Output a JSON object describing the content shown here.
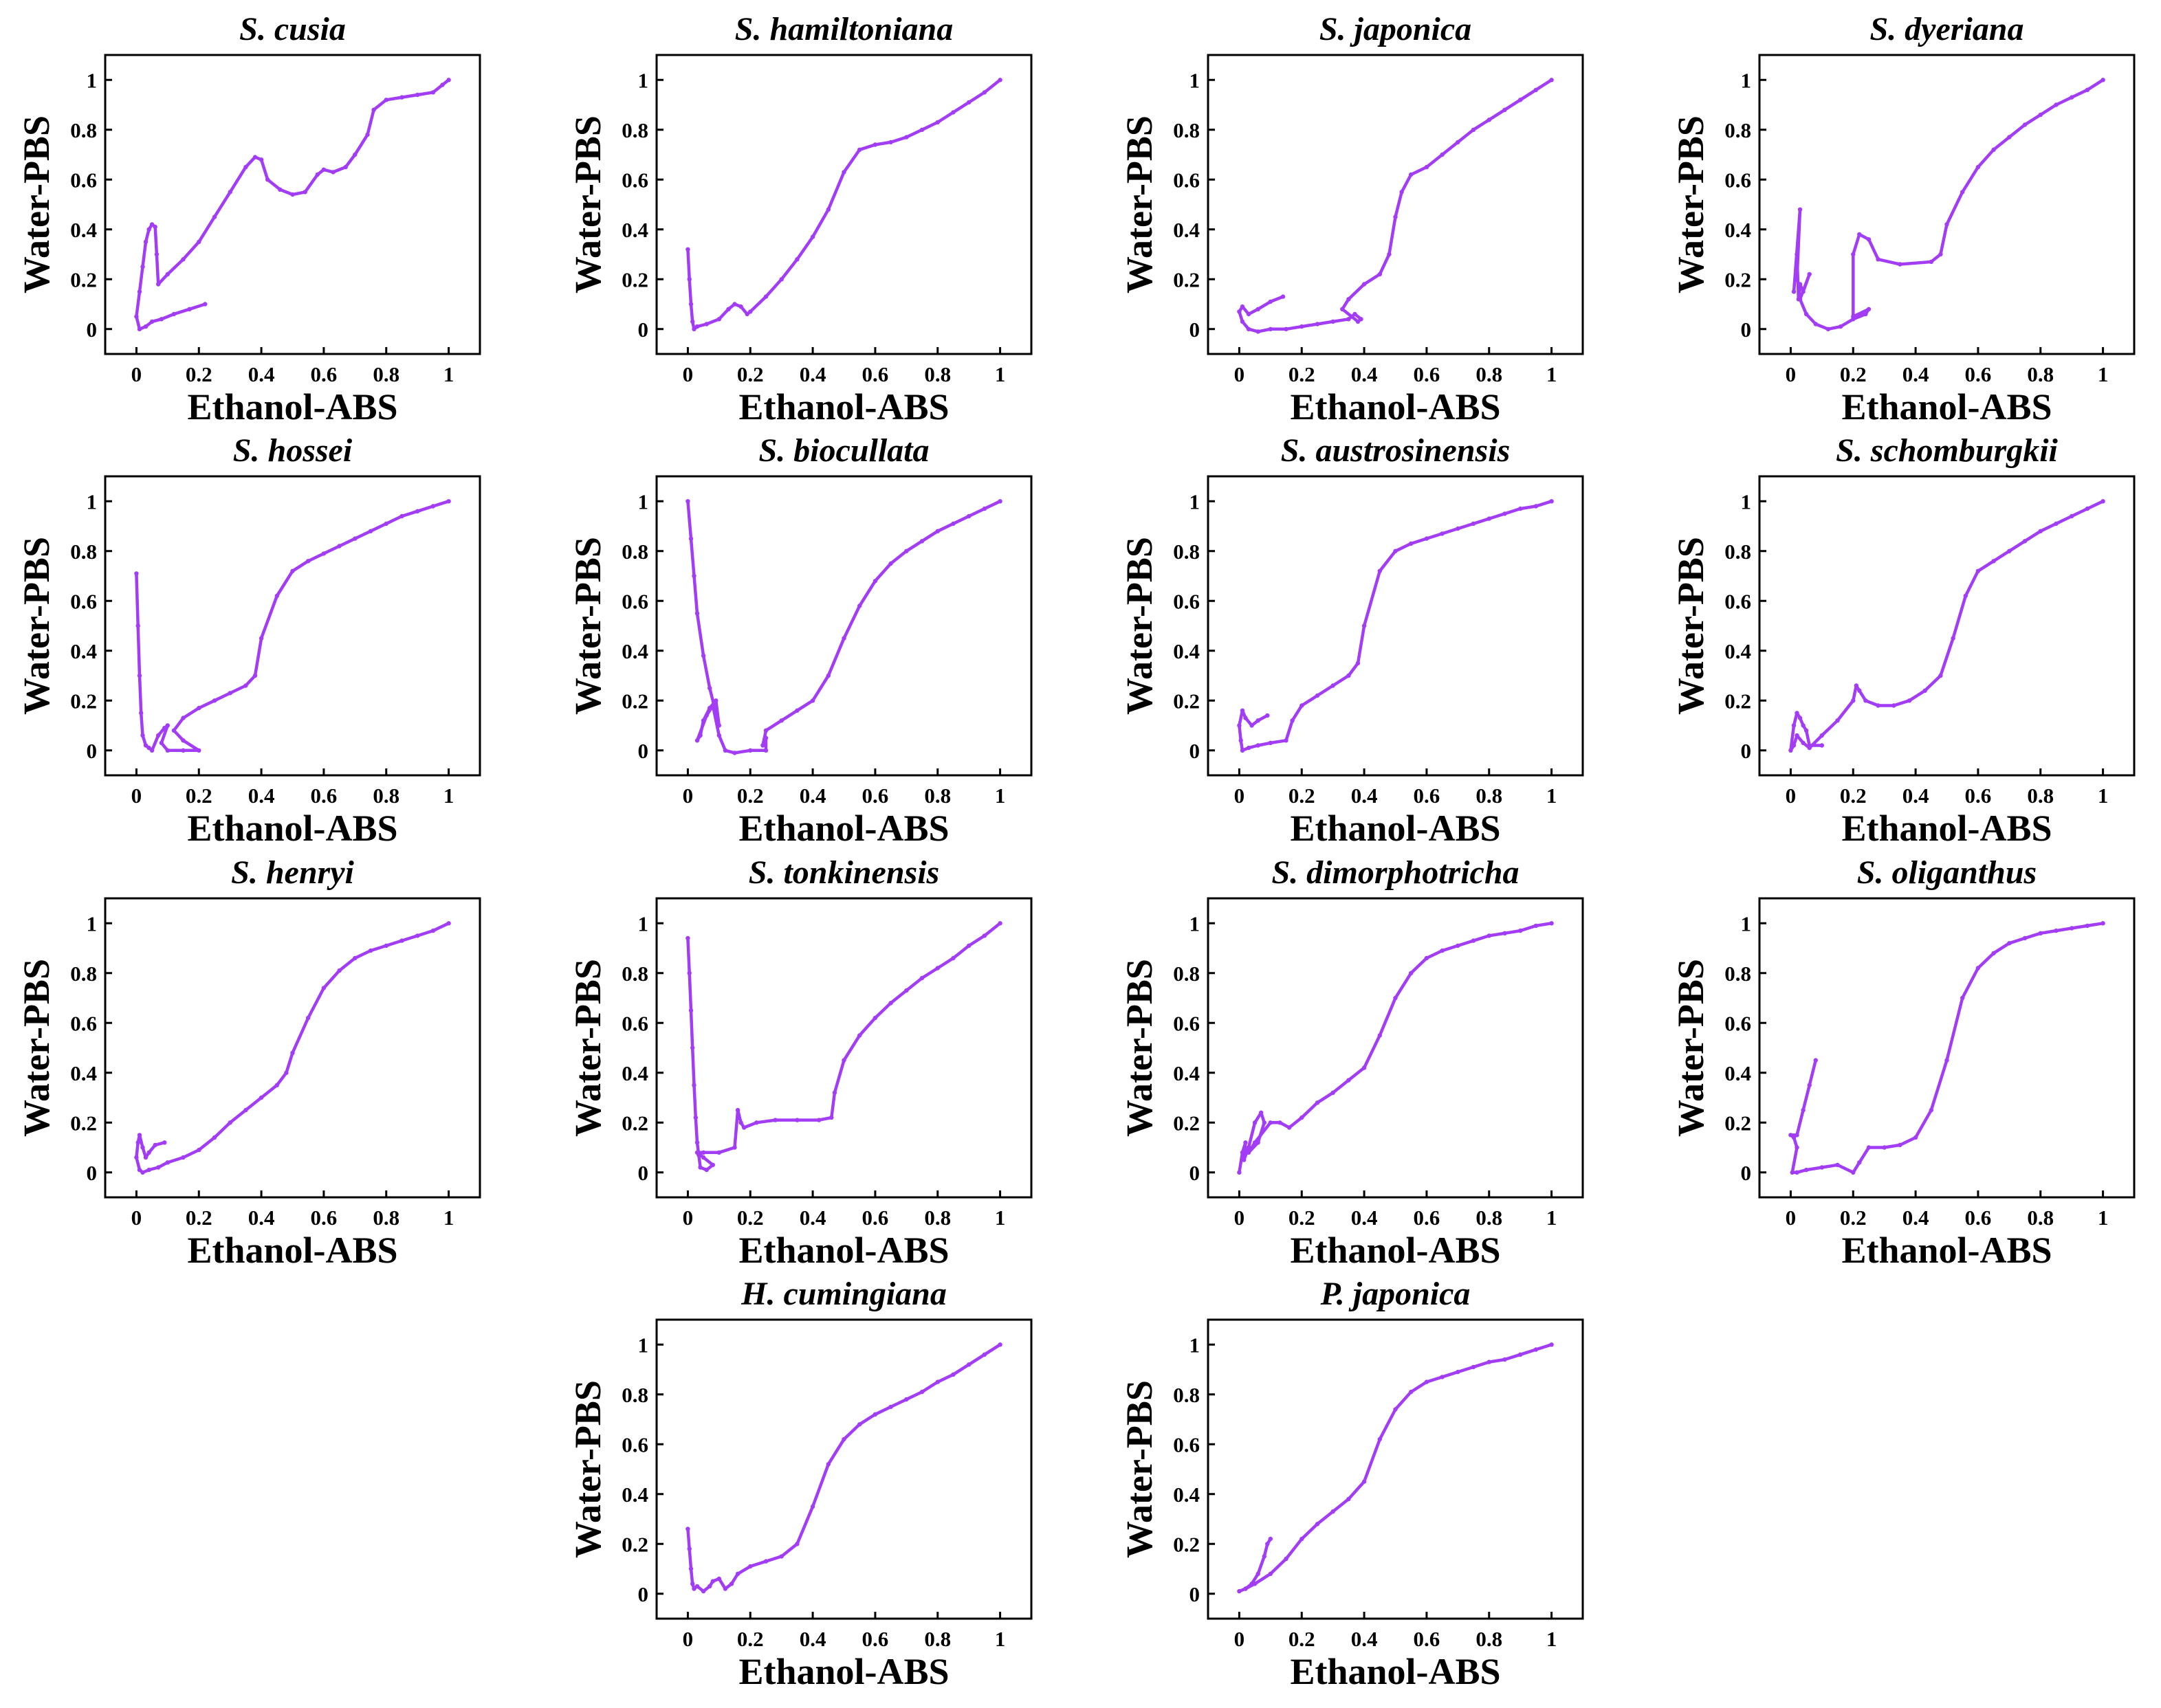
{
  "figure": {
    "x_label": "Ethanol-ABS",
    "y_label": "Water-PBS",
    "series_color": "#a23cf5"
  },
  "chart_data": [
    {
      "type": "line",
      "title": "S. cusia",
      "xlabel": "Ethanol-ABS",
      "ylabel": "Water-PBS",
      "xlim": [
        -0.1,
        1.1
      ],
      "ylim": [
        -0.1,
        1.1
      ],
      "xticks": [
        "0",
        "0.2",
        "0.4",
        "0.6",
        "0.8",
        "1"
      ],
      "yticks": [
        "0",
        "0.2",
        "0.4",
        "0.6",
        "0.8",
        "1"
      ],
      "x": [
        0.22,
        0.17,
        0.12,
        0.08,
        0.05,
        0.03,
        0.01,
        0.0,
        0.01,
        0.02,
        0.03,
        0.04,
        0.05,
        0.06,
        0.065,
        0.07,
        0.1,
        0.15,
        0.2,
        0.25,
        0.3,
        0.35,
        0.38,
        0.4,
        0.42,
        0.46,
        0.5,
        0.54,
        0.58,
        0.6,
        0.63,
        0.67,
        0.7,
        0.74,
        0.76,
        0.8,
        0.85,
        0.9,
        0.95,
        0.98,
        1.0
      ],
      "y": [
        0.1,
        0.08,
        0.06,
        0.04,
        0.03,
        0.01,
        0.0,
        0.05,
        0.15,
        0.25,
        0.35,
        0.4,
        0.42,
        0.41,
        0.3,
        0.18,
        0.22,
        0.28,
        0.35,
        0.45,
        0.55,
        0.65,
        0.69,
        0.68,
        0.6,
        0.56,
        0.54,
        0.55,
        0.62,
        0.64,
        0.63,
        0.65,
        0.7,
        0.78,
        0.88,
        0.92,
        0.93,
        0.94,
        0.95,
        0.98,
        1.0
      ]
    },
    {
      "type": "line",
      "title": "S. hamiltoniana",
      "xlabel": "Ethanol-ABS",
      "ylabel": "Water-PBS",
      "xlim": [
        -0.1,
        1.1
      ],
      "ylim": [
        -0.1,
        1.1
      ],
      "xticks": [
        "0",
        "0.2",
        "0.4",
        "0.6",
        "0.8",
        "1"
      ],
      "yticks": [
        "0",
        "0.2",
        "0.4",
        "0.6",
        "0.8",
        "1"
      ],
      "x": [
        0.0,
        0.005,
        0.01,
        0.015,
        0.02,
        0.03,
        0.06,
        0.1,
        0.13,
        0.15,
        0.17,
        0.19,
        0.2,
        0.25,
        0.3,
        0.35,
        0.4,
        0.45,
        0.5,
        0.55,
        0.6,
        0.65,
        0.7,
        0.75,
        0.8,
        0.85,
        0.9,
        0.95,
        1.0
      ],
      "y": [
        0.32,
        0.2,
        0.1,
        0.03,
        0.0,
        0.01,
        0.02,
        0.04,
        0.08,
        0.1,
        0.09,
        0.06,
        0.07,
        0.13,
        0.2,
        0.28,
        0.37,
        0.48,
        0.63,
        0.72,
        0.74,
        0.75,
        0.77,
        0.8,
        0.83,
        0.87,
        0.91,
        0.95,
        1.0
      ]
    },
    {
      "type": "line",
      "title": "S. japonica",
      "xlabel": "Ethanol-ABS",
      "ylabel": "Water-PBS",
      "xlim": [
        -0.1,
        1.1
      ],
      "ylim": [
        -0.1,
        1.1
      ],
      "xticks": [
        "0",
        "0.2",
        "0.4",
        "0.6",
        "0.8",
        "1"
      ],
      "yticks": [
        "0",
        "0.2",
        "0.4",
        "0.6",
        "0.8",
        "1"
      ],
      "x": [
        0.14,
        0.1,
        0.06,
        0.03,
        0.01,
        0.0,
        0.01,
        0.03,
        0.06,
        0.1,
        0.15,
        0.2,
        0.25,
        0.3,
        0.35,
        0.37,
        0.39,
        0.38,
        0.33,
        0.35,
        0.4,
        0.45,
        0.48,
        0.5,
        0.52,
        0.55,
        0.6,
        0.65,
        0.7,
        0.75,
        0.8,
        0.85,
        0.9,
        0.95,
        1.0
      ],
      "y": [
        0.13,
        0.11,
        0.08,
        0.06,
        0.09,
        0.07,
        0.03,
        0.0,
        -0.01,
        0.0,
        0.0,
        0.01,
        0.02,
        0.03,
        0.04,
        0.06,
        0.04,
        0.03,
        0.08,
        0.12,
        0.18,
        0.22,
        0.3,
        0.45,
        0.55,
        0.62,
        0.65,
        0.7,
        0.75,
        0.8,
        0.84,
        0.88,
        0.92,
        0.96,
        1.0
      ]
    },
    {
      "type": "line",
      "title": "S. dyeriana",
      "xlabel": "Ethanol-ABS",
      "ylabel": "Water-PBS",
      "xlim": [
        -0.1,
        1.1
      ],
      "ylim": [
        -0.1,
        1.1
      ],
      "xticks": [
        "0",
        "0.2",
        "0.4",
        "0.6",
        "0.8",
        "1"
      ],
      "yticks": [
        "0",
        "0.2",
        "0.4",
        "0.6",
        "0.8",
        "1"
      ],
      "x": [
        0.02,
        0.03,
        0.01,
        0.02,
        0.025,
        0.03,
        0.04,
        0.06,
        0.03,
        0.05,
        0.08,
        0.12,
        0.16,
        0.2,
        0.24,
        0.25,
        0.2,
        0.2,
        0.22,
        0.25,
        0.28,
        0.35,
        0.45,
        0.48,
        0.5,
        0.55,
        0.6,
        0.65,
        0.7,
        0.75,
        0.8,
        0.85,
        0.9,
        0.95,
        1.0
      ],
      "y": [
        0.2,
        0.48,
        0.15,
        0.3,
        0.12,
        0.18,
        0.15,
        0.22,
        0.12,
        0.06,
        0.02,
        0.0,
        0.01,
        0.04,
        0.06,
        0.08,
        0.05,
        0.3,
        0.38,
        0.36,
        0.28,
        0.26,
        0.27,
        0.3,
        0.42,
        0.55,
        0.65,
        0.72,
        0.77,
        0.82,
        0.86,
        0.9,
        0.93,
        0.96,
        1.0
      ]
    },
    {
      "type": "line",
      "title": "S. hossei",
      "xlabel": "Ethanol-ABS",
      "ylabel": "Water-PBS",
      "xlim": [
        -0.1,
        1.1
      ],
      "ylim": [
        -0.1,
        1.1
      ],
      "xticks": [
        "0",
        "0.2",
        "0.4",
        "0.6",
        "0.8",
        "1"
      ],
      "yticks": [
        "0",
        "0.2",
        "0.4",
        "0.6",
        "0.8",
        "1"
      ],
      "x": [
        0.0,
        0.005,
        0.01,
        0.015,
        0.02,
        0.03,
        0.04,
        0.05,
        0.07,
        0.09,
        0.1,
        0.08,
        0.1,
        0.15,
        0.2,
        0.15,
        0.12,
        0.15,
        0.2,
        0.25,
        0.3,
        0.35,
        0.38,
        0.4,
        0.45,
        0.5,
        0.55,
        0.6,
        0.65,
        0.7,
        0.75,
        0.8,
        0.85,
        0.9,
        0.95,
        1.0
      ],
      "y": [
        0.71,
        0.5,
        0.3,
        0.15,
        0.06,
        0.02,
        0.01,
        0.0,
        0.06,
        0.09,
        0.1,
        0.03,
        0.0,
        0.0,
        0.0,
        0.04,
        0.08,
        0.13,
        0.17,
        0.2,
        0.23,
        0.26,
        0.3,
        0.45,
        0.62,
        0.72,
        0.76,
        0.79,
        0.82,
        0.85,
        0.88,
        0.91,
        0.94,
        0.96,
        0.98,
        1.0
      ]
    },
    {
      "type": "line",
      "title": "S. biocullata",
      "xlabel": "Ethanol-ABS",
      "ylabel": "Water-PBS",
      "xlim": [
        -0.1,
        1.1
      ],
      "ylim": [
        -0.1,
        1.1
      ],
      "xticks": [
        "0",
        "0.2",
        "0.4",
        "0.6",
        "0.8",
        "1"
      ],
      "yticks": [
        "0",
        "0.2",
        "0.4",
        "0.6",
        "0.8",
        "1"
      ],
      "x": [
        0.0,
        0.01,
        0.02,
        0.03,
        0.05,
        0.07,
        0.09,
        0.1,
        0.09,
        0.07,
        0.05,
        0.04,
        0.03,
        0.06,
        0.08,
        0.1,
        0.12,
        0.15,
        0.2,
        0.25,
        0.25,
        0.24,
        0.25,
        0.3,
        0.35,
        0.4,
        0.45,
        0.5,
        0.55,
        0.6,
        0.65,
        0.7,
        0.75,
        0.8,
        0.85,
        0.9,
        0.95,
        1.0
      ],
      "y": [
        1.0,
        0.85,
        0.7,
        0.55,
        0.38,
        0.25,
        0.15,
        0.1,
        0.2,
        0.17,
        0.12,
        0.06,
        0.04,
        0.14,
        0.18,
        0.06,
        0.0,
        -0.01,
        0.0,
        0.0,
        0.05,
        0.02,
        0.08,
        0.12,
        0.16,
        0.2,
        0.3,
        0.45,
        0.58,
        0.68,
        0.75,
        0.8,
        0.84,
        0.88,
        0.91,
        0.94,
        0.97,
        1.0
      ]
    },
    {
      "type": "line",
      "title": "S. austrosinensis",
      "xlabel": "Ethanol-ABS",
      "ylabel": "Water-PBS",
      "xlim": [
        -0.1,
        1.1
      ],
      "ylim": [
        -0.1,
        1.1
      ],
      "xticks": [
        "0",
        "0.2",
        "0.4",
        "0.6",
        "0.8",
        "1"
      ],
      "yticks": [
        "0",
        "0.2",
        "0.4",
        "0.6",
        "0.8",
        "1"
      ],
      "x": [
        0.09,
        0.06,
        0.04,
        0.02,
        0.01,
        0.0,
        0.005,
        0.01,
        0.03,
        0.06,
        0.1,
        0.15,
        0.17,
        0.2,
        0.25,
        0.3,
        0.35,
        0.38,
        0.4,
        0.45,
        0.5,
        0.55,
        0.6,
        0.65,
        0.7,
        0.75,
        0.8,
        0.85,
        0.9,
        0.95,
        1.0
      ],
      "y": [
        0.14,
        0.12,
        0.1,
        0.13,
        0.16,
        0.1,
        0.04,
        0.0,
        0.01,
        0.02,
        0.03,
        0.04,
        0.12,
        0.18,
        0.22,
        0.26,
        0.3,
        0.35,
        0.5,
        0.72,
        0.8,
        0.83,
        0.85,
        0.87,
        0.89,
        0.91,
        0.93,
        0.95,
        0.97,
        0.98,
        1.0
      ]
    },
    {
      "type": "line",
      "title": "S. schomburgkii",
      "xlabel": "Ethanol-ABS",
      "ylabel": "Water-PBS",
      "xlim": [
        -0.1,
        1.1
      ],
      "ylim": [
        -0.1,
        1.1
      ],
      "xticks": [
        "0",
        "0.2",
        "0.4",
        "0.6",
        "0.8",
        "1"
      ],
      "yticks": [
        "0",
        "0.2",
        "0.4",
        "0.6",
        "0.8",
        "1"
      ],
      "x": [
        0.1,
        0.06,
        0.05,
        0.04,
        0.03,
        0.02,
        0.01,
        0.0,
        0.01,
        0.02,
        0.04,
        0.06,
        0.1,
        0.15,
        0.2,
        0.21,
        0.22,
        0.24,
        0.28,
        0.33,
        0.38,
        0.43,
        0.48,
        0.52,
        0.56,
        0.6,
        0.65,
        0.7,
        0.75,
        0.8,
        0.85,
        0.9,
        0.95,
        1.0
      ],
      "y": [
        0.02,
        0.02,
        0.08,
        0.1,
        0.13,
        0.15,
        0.1,
        0.0,
        0.02,
        0.06,
        0.03,
        0.01,
        0.06,
        0.12,
        0.2,
        0.26,
        0.24,
        0.2,
        0.18,
        0.18,
        0.2,
        0.24,
        0.3,
        0.45,
        0.62,
        0.72,
        0.76,
        0.8,
        0.84,
        0.88,
        0.91,
        0.94,
        0.97,
        1.0
      ]
    },
    {
      "type": "line",
      "title": "S. henryi",
      "xlabel": "Ethanol-ABS",
      "ylabel": "Water-PBS",
      "xlim": [
        -0.1,
        1.1
      ],
      "ylim": [
        -0.1,
        1.1
      ],
      "xticks": [
        "0",
        "0.2",
        "0.4",
        "0.6",
        "0.8",
        "1"
      ],
      "yticks": [
        "0",
        "0.2",
        "0.4",
        "0.6",
        "0.8",
        "1"
      ],
      "x": [
        0.09,
        0.06,
        0.04,
        0.03,
        0.02,
        0.01,
        0.005,
        0.0,
        0.01,
        0.02,
        0.04,
        0.07,
        0.1,
        0.15,
        0.2,
        0.25,
        0.3,
        0.35,
        0.4,
        0.45,
        0.48,
        0.5,
        0.55,
        0.6,
        0.65,
        0.7,
        0.75,
        0.8,
        0.85,
        0.9,
        0.95,
        1.0
      ],
      "y": [
        0.12,
        0.11,
        0.08,
        0.06,
        0.1,
        0.15,
        0.12,
        0.06,
        0.01,
        0.0,
        0.01,
        0.02,
        0.04,
        0.06,
        0.09,
        0.14,
        0.2,
        0.25,
        0.3,
        0.35,
        0.4,
        0.48,
        0.62,
        0.74,
        0.81,
        0.86,
        0.89,
        0.91,
        0.93,
        0.95,
        0.97,
        1.0
      ]
    },
    {
      "type": "line",
      "title": "S. tonkinensis",
      "xlabel": "Ethanol-ABS",
      "ylabel": "Water-PBS",
      "xlim": [
        -0.1,
        1.1
      ],
      "ylim": [
        -0.1,
        1.1
      ],
      "xticks": [
        "0",
        "0.2",
        "0.4",
        "0.6",
        "0.8",
        "1"
      ],
      "yticks": [
        "0",
        "0.2",
        "0.4",
        "0.6",
        "0.8",
        "1"
      ],
      "x": [
        0.0,
        0.005,
        0.01,
        0.015,
        0.02,
        0.025,
        0.03,
        0.035,
        0.04,
        0.06,
        0.08,
        0.05,
        0.03,
        0.05,
        0.1,
        0.15,
        0.16,
        0.17,
        0.18,
        0.22,
        0.28,
        0.35,
        0.42,
        0.46,
        0.47,
        0.5,
        0.55,
        0.6,
        0.65,
        0.7,
        0.75,
        0.8,
        0.85,
        0.9,
        0.95,
        1.0
      ],
      "y": [
        0.94,
        0.8,
        0.65,
        0.5,
        0.35,
        0.22,
        0.12,
        0.07,
        0.02,
        0.01,
        0.03,
        0.06,
        0.08,
        0.08,
        0.08,
        0.1,
        0.25,
        0.2,
        0.18,
        0.2,
        0.21,
        0.21,
        0.21,
        0.22,
        0.32,
        0.45,
        0.55,
        0.62,
        0.68,
        0.73,
        0.78,
        0.82,
        0.86,
        0.91,
        0.95,
        1.0
      ]
    },
    {
      "type": "line",
      "title": "S. dimorphotricha",
      "xlabel": "Ethanol-ABS",
      "ylabel": "Water-PBS",
      "xlim": [
        -0.1,
        1.1
      ],
      "ylim": [
        -0.1,
        1.1
      ],
      "xticks": [
        "0",
        "0.2",
        "0.4",
        "0.6",
        "0.8",
        "1"
      ],
      "yticks": [
        "0",
        "0.2",
        "0.4",
        "0.6",
        "0.8",
        "1"
      ],
      "x": [
        0.0,
        0.01,
        0.02,
        0.015,
        0.03,
        0.05,
        0.07,
        0.08,
        0.06,
        0.03,
        0.05,
        0.1,
        0.13,
        0.16,
        0.2,
        0.25,
        0.3,
        0.35,
        0.4,
        0.45,
        0.5,
        0.55,
        0.6,
        0.65,
        0.7,
        0.75,
        0.8,
        0.85,
        0.9,
        0.95,
        1.0
      ],
      "y": [
        0.0,
        0.08,
        0.12,
        0.05,
        0.1,
        0.2,
        0.24,
        0.2,
        0.12,
        0.08,
        0.12,
        0.2,
        0.2,
        0.18,
        0.22,
        0.28,
        0.32,
        0.37,
        0.42,
        0.55,
        0.7,
        0.8,
        0.86,
        0.89,
        0.91,
        0.93,
        0.95,
        0.96,
        0.97,
        0.99,
        1.0
      ]
    },
    {
      "type": "line",
      "title": "S. oliganthus",
      "xlabel": "Ethanol-ABS",
      "ylabel": "Water-PBS",
      "xlim": [
        -0.1,
        1.1
      ],
      "ylim": [
        -0.1,
        1.1
      ],
      "xticks": [
        "0",
        "0.2",
        "0.4",
        "0.6",
        "0.8",
        "1"
      ],
      "yticks": [
        "0",
        "0.2",
        "0.4",
        "0.6",
        "0.8",
        "1"
      ],
      "x": [
        0.08,
        0.06,
        0.04,
        0.02,
        0.0,
        0.01,
        0.02,
        0.005,
        0.02,
        0.05,
        0.1,
        0.15,
        0.2,
        0.22,
        0.25,
        0.3,
        0.35,
        0.4,
        0.45,
        0.5,
        0.55,
        0.6,
        0.65,
        0.7,
        0.75,
        0.8,
        0.85,
        0.9,
        0.95,
        1.0
      ],
      "y": [
        0.45,
        0.35,
        0.25,
        0.15,
        0.15,
        0.14,
        0.1,
        0.0,
        0.0,
        0.01,
        0.02,
        0.03,
        0.0,
        0.04,
        0.1,
        0.1,
        0.11,
        0.14,
        0.25,
        0.45,
        0.7,
        0.82,
        0.88,
        0.92,
        0.94,
        0.96,
        0.97,
        0.98,
        0.99,
        1.0
      ]
    },
    {
      "type": "line",
      "title": "H. cumingiana",
      "xlabel": "Ethanol-ABS",
      "ylabel": "Water-PBS",
      "xlim": [
        -0.1,
        1.1
      ],
      "ylim": [
        -0.1,
        1.1
      ],
      "xticks": [
        "0",
        "0.2",
        "0.4",
        "0.6",
        "0.8",
        "1"
      ],
      "yticks": [
        "0",
        "0.2",
        "0.4",
        "0.6",
        "0.8",
        "1"
      ],
      "x": [
        0.0,
        0.005,
        0.01,
        0.015,
        0.02,
        0.03,
        0.05,
        0.07,
        0.08,
        0.1,
        0.12,
        0.14,
        0.16,
        0.2,
        0.25,
        0.3,
        0.35,
        0.4,
        0.45,
        0.5,
        0.55,
        0.6,
        0.65,
        0.7,
        0.75,
        0.8,
        0.85,
        0.9,
        0.95,
        1.0
      ],
      "y": [
        0.26,
        0.18,
        0.1,
        0.04,
        0.02,
        0.03,
        0.01,
        0.03,
        0.05,
        0.06,
        0.02,
        0.04,
        0.08,
        0.11,
        0.13,
        0.15,
        0.2,
        0.35,
        0.52,
        0.62,
        0.68,
        0.72,
        0.75,
        0.78,
        0.81,
        0.85,
        0.88,
        0.92,
        0.96,
        1.0
      ]
    },
    {
      "type": "line",
      "title": "P. japonica",
      "xlabel": "Ethanol-ABS",
      "ylabel": "Water-PBS",
      "xlim": [
        -0.1,
        1.1
      ],
      "ylim": [
        -0.1,
        1.1
      ],
      "xticks": [
        "0",
        "0.2",
        "0.4",
        "0.6",
        "0.8",
        "1"
      ],
      "yticks": [
        "0",
        "0.2",
        "0.4",
        "0.6",
        "0.8",
        "1"
      ],
      "x": [
        0.1,
        0.09,
        0.08,
        0.06,
        0.04,
        0.02,
        0.0,
        0.02,
        0.05,
        0.1,
        0.15,
        0.2,
        0.25,
        0.3,
        0.35,
        0.4,
        0.45,
        0.5,
        0.55,
        0.6,
        0.65,
        0.7,
        0.75,
        0.8,
        0.85,
        0.9,
        0.95,
        1.0
      ],
      "y": [
        0.22,
        0.2,
        0.15,
        0.08,
        0.04,
        0.02,
        0.01,
        0.02,
        0.04,
        0.08,
        0.14,
        0.22,
        0.28,
        0.33,
        0.38,
        0.45,
        0.62,
        0.74,
        0.81,
        0.85,
        0.87,
        0.89,
        0.91,
        0.93,
        0.94,
        0.96,
        0.98,
        1.0
      ]
    }
  ]
}
